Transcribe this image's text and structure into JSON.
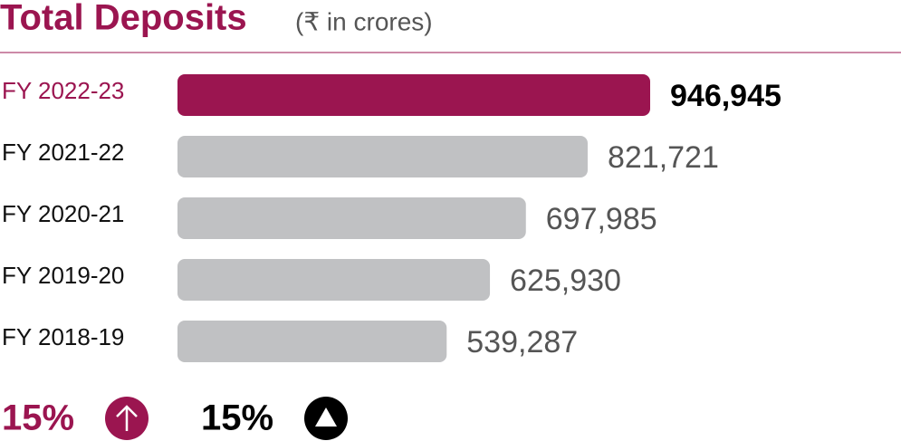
{
  "chart_data": {
    "type": "hbar",
    "title": "Total Deposits",
    "subtitle": "(₹ in crores)",
    "categories": [
      "FY 2022-23",
      "FY 2021-22",
      "FY 2020-21",
      "FY 2019-20",
      "FY 2018-19"
    ],
    "values": [
      946945,
      821721,
      697985,
      625930,
      539287
    ],
    "value_labels": [
      "946,945",
      "821,721",
      "697,985",
      "625,930",
      "539,287"
    ],
    "colors": [
      "#9b1550",
      "#c0c1c3",
      "#c0c1c3",
      "#c0c1c3",
      "#c0c1c3"
    ],
    "highlight": 0,
    "growth": [
      {
        "label": "15%",
        "color": "#9b1550"
      },
      {
        "label": "15%",
        "color": "#000000"
      }
    ]
  }
}
